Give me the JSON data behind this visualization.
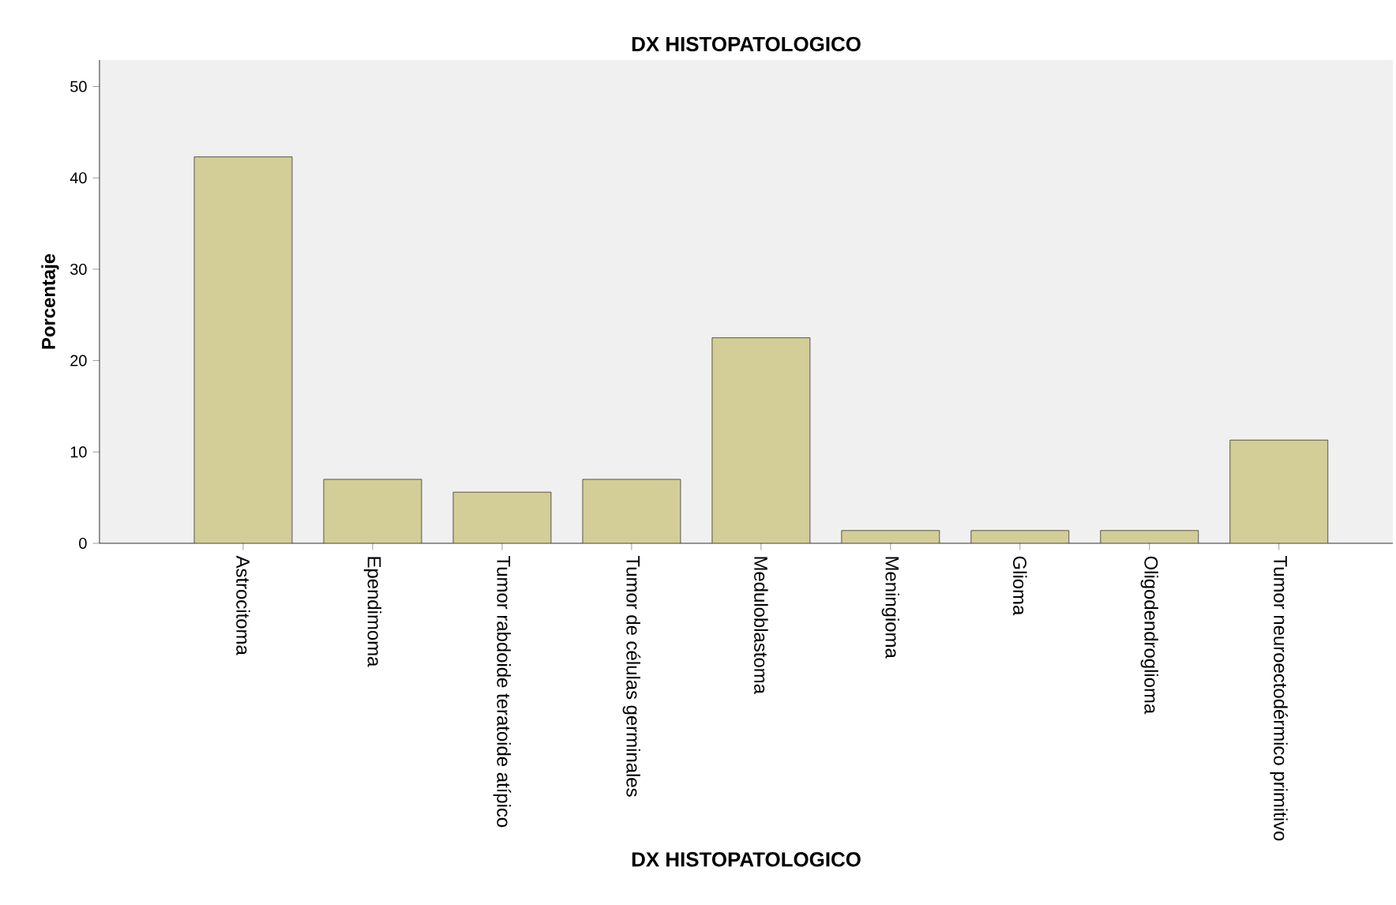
{
  "chart_data": {
    "type": "bar",
    "title": "DX HISTOPATOLOGICO",
    "xlabel": "DX HISTOPATOLOGICO",
    "ylabel": "Porcentaje",
    "categories": [
      "Astrocitoma",
      "Ependimoma",
      "Tumor rabdoide teratoide atípico",
      "Tumor de células germinales",
      "Meduloblastoma",
      "Meningioma",
      "Glioma",
      "Oligodendroglioma",
      "Tumor neuroectodérmico primitivo"
    ],
    "values": [
      42.3,
      7.0,
      5.6,
      7.0,
      22.5,
      1.4,
      1.4,
      1.4,
      11.3
    ],
    "color": "#d3ce97",
    "ylim": [
      0,
      52.9
    ],
    "yticks": [
      0,
      10,
      20,
      30,
      40,
      50
    ]
  }
}
